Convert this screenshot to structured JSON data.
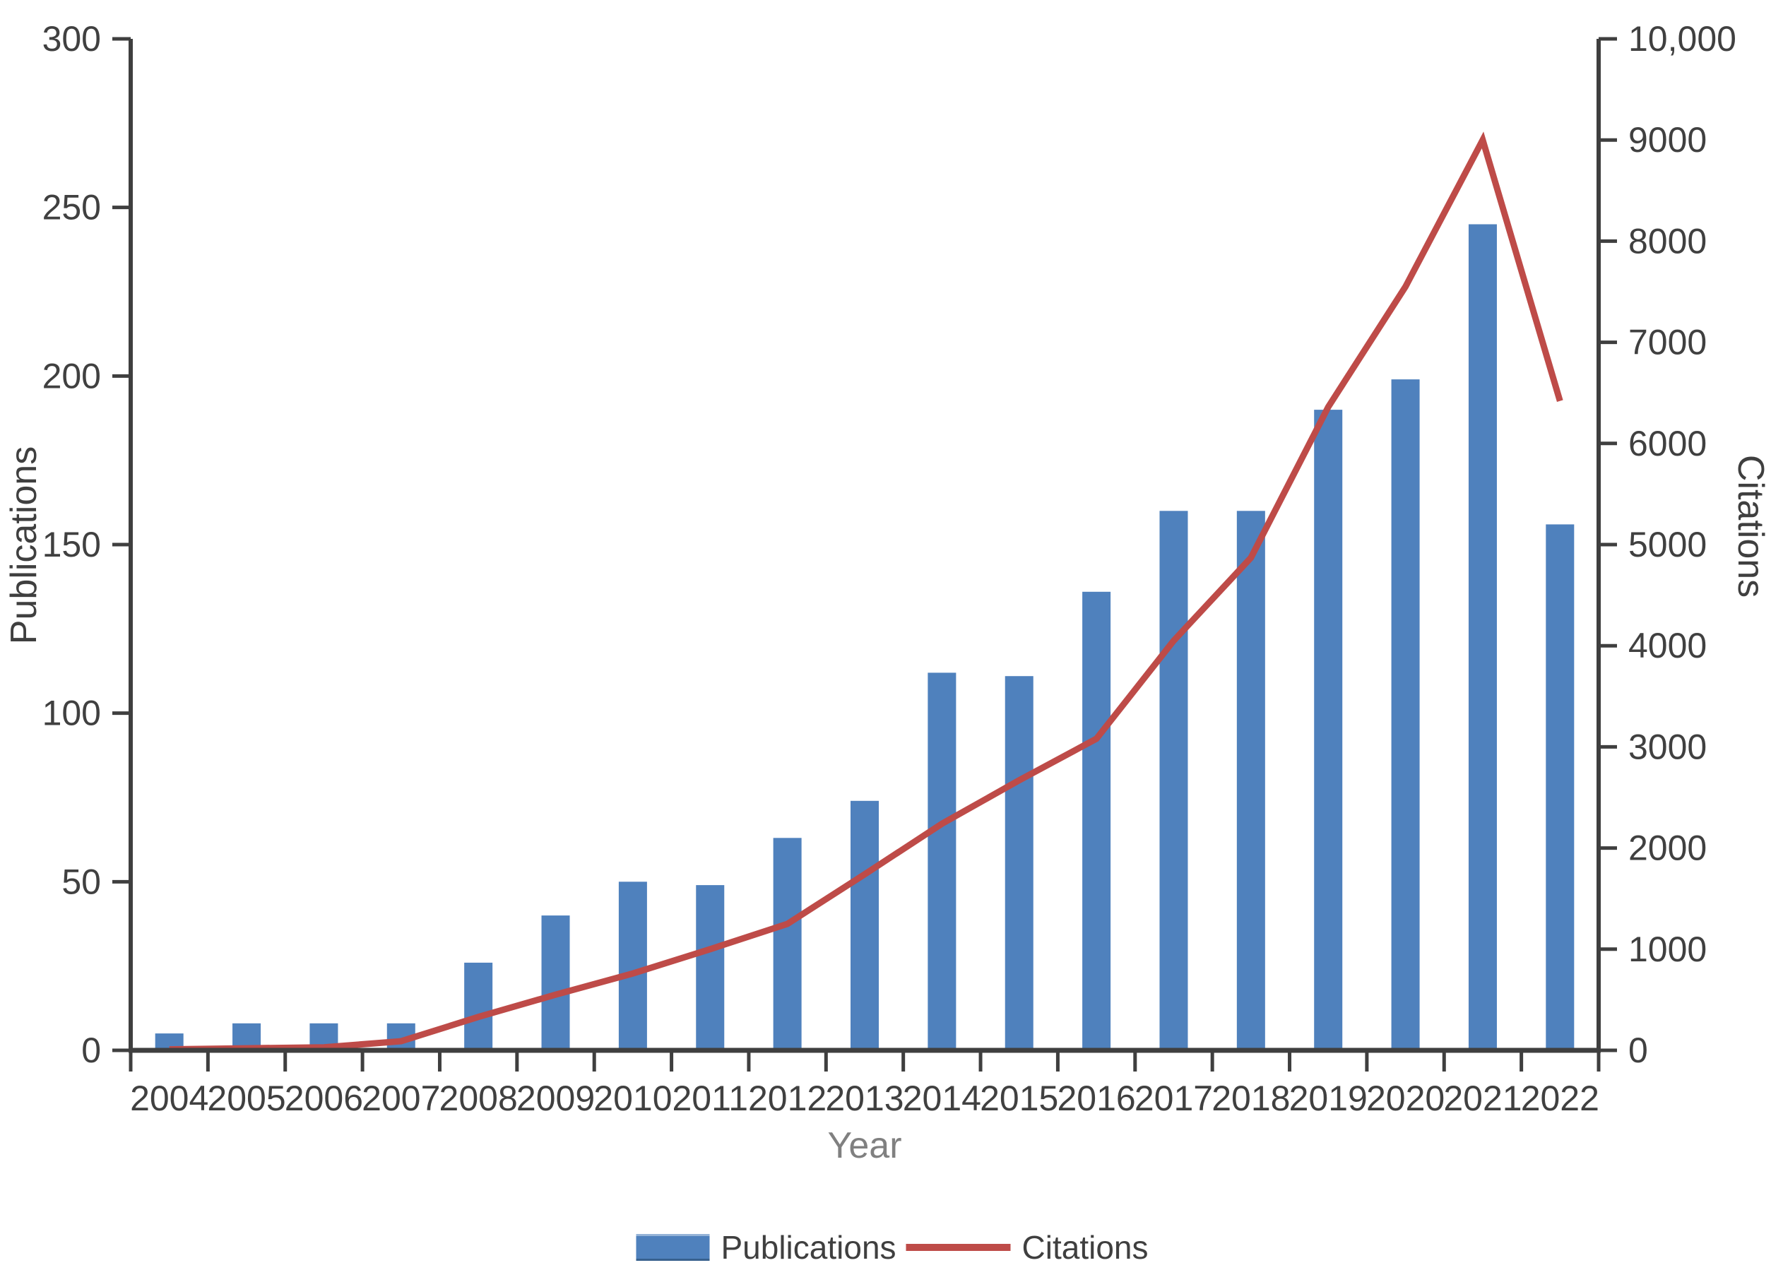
{
  "chart_data": {
    "type": "combo",
    "categories": [
      "2004",
      "2005",
      "2006",
      "2007",
      "2008",
      "2009",
      "2010",
      "2011",
      "2012",
      "2013",
      "2014",
      "2015",
      "2016",
      "2017",
      "2018",
      "2019",
      "2020",
      "2021",
      "2022"
    ],
    "series": [
      {
        "name": "Publications",
        "type": "bar",
        "axis": "left",
        "values": [
          5,
          8,
          8,
          8,
          26,
          40,
          50,
          49,
          63,
          74,
          112,
          111,
          136,
          160,
          160,
          190,
          199,
          245,
          156
        ]
      },
      {
        "name": "Citations",
        "type": "line",
        "axis": "right",
        "values": [
          10,
          20,
          30,
          90,
          330,
          550,
          760,
          1000,
          1250,
          1740,
          2240,
          2670,
          3080,
          4050,
          4870,
          6360,
          7550,
          9000,
          6420
        ]
      }
    ],
    "title": "",
    "xlabel": "Year",
    "ylabel_left": "Publications",
    "ylabel_right": "Citations",
    "ylim_left": [
      0,
      300
    ],
    "yticks_left": [
      "0",
      "50",
      "100",
      "150",
      "200",
      "250",
      "300"
    ],
    "ylim_right": [
      0,
      10000
    ],
    "yticks_right": [
      "0",
      "1000",
      "2000",
      "3000",
      "4000",
      "5000",
      "6000",
      "7000",
      "8000",
      "9000",
      "10,000"
    ],
    "grid": false,
    "legend": {
      "position": "bottom",
      "items": [
        "Publications",
        "Citations"
      ]
    },
    "colors": {
      "bar": "#4F81BD",
      "line": "#BE4B48",
      "axis": "#3F3F3F",
      "tick_text": "#404040",
      "xlabel_text": "#808080"
    }
  }
}
